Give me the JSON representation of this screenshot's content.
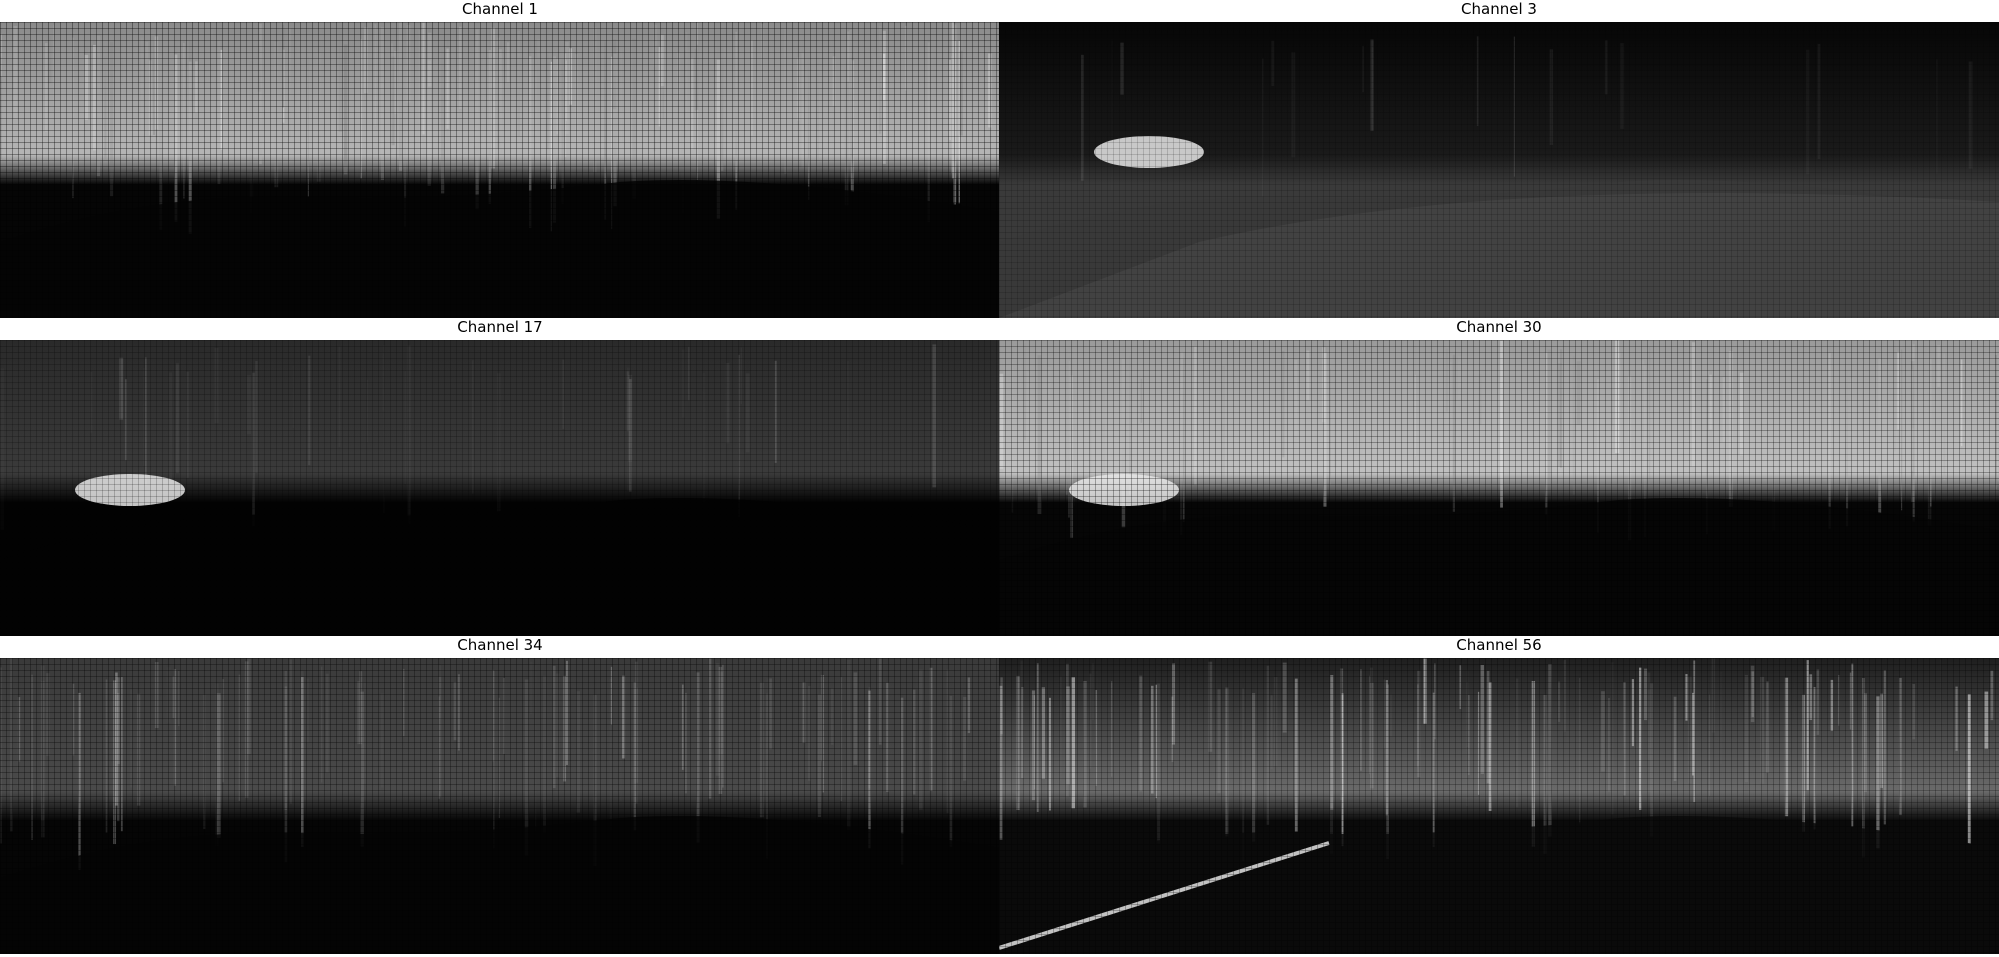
{
  "figure": {
    "panels": [
      {
        "title": "Channel 1",
        "style": "bright-top"
      },
      {
        "title": "Channel 3",
        "style": "road-glow"
      },
      {
        "title": "Channel 17",
        "style": "dim-car"
      },
      {
        "title": "Channel 30",
        "style": "bright-sky"
      },
      {
        "title": "Channel 34",
        "style": "dim-textured"
      },
      {
        "title": "Channel 56",
        "style": "edges"
      }
    ]
  }
}
